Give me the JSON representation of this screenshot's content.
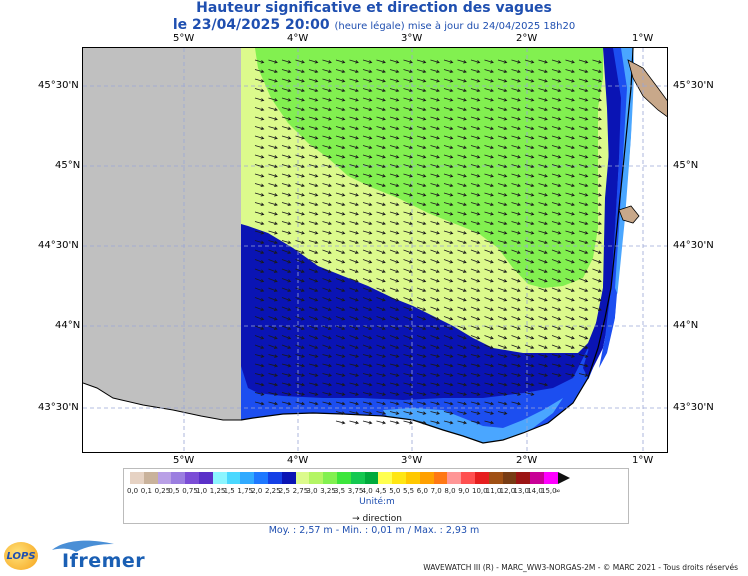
{
  "title": {
    "line1": "Hauteur significative et direction des vagues",
    "line2": "le 23/04/2025 20:00",
    "line2_sub": "(heure légale) mise à jour du 24/04/2025 18h20"
  },
  "map": {
    "lon_labels": [
      "5°W",
      "4°W",
      "3°W",
      "2°W",
      "1°W"
    ],
    "lat_labels": [
      "45°30'N",
      "45°N",
      "44°30'N",
      "44°N",
      "43°30'N"
    ],
    "colors": {
      "land": "#c0c0c0",
      "dark_blue": "#0a14b4",
      "yellow_green": "#dcfa8c",
      "green": "#82f050",
      "blue": "#1c4ef0",
      "light_blue": "#4aa6ff",
      "coast_land": "#c8a88a"
    }
  },
  "legend": {
    "values": [
      "0,0",
      "0,1",
      "0,25",
      "0,5",
      "0,75",
      "1,0",
      "1,25",
      "1,5",
      "1,75",
      "2,0",
      "2,25",
      "2,5",
      "2,75",
      "3,0",
      "3,25",
      "3,5",
      "3,75",
      "4,0",
      "4,5",
      "5,0",
      "5,5",
      "6,0",
      "7,0",
      "8,0",
      "9,0",
      "10,0",
      "11,0",
      "12,0",
      "13,0",
      "14,0",
      "15,0",
      "∞"
    ],
    "colors": [
      "#e6d2c3",
      "#c9b29b",
      "#b9a0e6",
      "#9b7ee0",
      "#7b4dd6",
      "#5a30c8",
      "#8cf5ff",
      "#4ad8ff",
      "#30aaff",
      "#1e78ff",
      "#1440e6",
      "#0a14b4",
      "#dcfa8c",
      "#b4f564",
      "#82f050",
      "#3ce63c",
      "#14c850",
      "#00aa3c",
      "#ffff50",
      "#ffe614",
      "#ffc800",
      "#ffa000",
      "#ff7814",
      "#ff9696",
      "#ff5050",
      "#e61e1e",
      "#a05014",
      "#783c14",
      "#9b1414",
      "#c80096",
      "#ff00ff"
    ],
    "unit": "Unité:m",
    "direction_label": "direction"
  },
  "stats": {
    "text": "Moy. : 2,57 m   -   Min. : 0,01 m / Max. : 2,93 m"
  },
  "footer": {
    "text": "WAVEWATCH III (R) - MARC_WW3-NORGAS-2M - © MARC 2021 - Tous droits réservés"
  },
  "logos": {
    "lops": "LOPS",
    "ifremer": "Ifremer"
  }
}
